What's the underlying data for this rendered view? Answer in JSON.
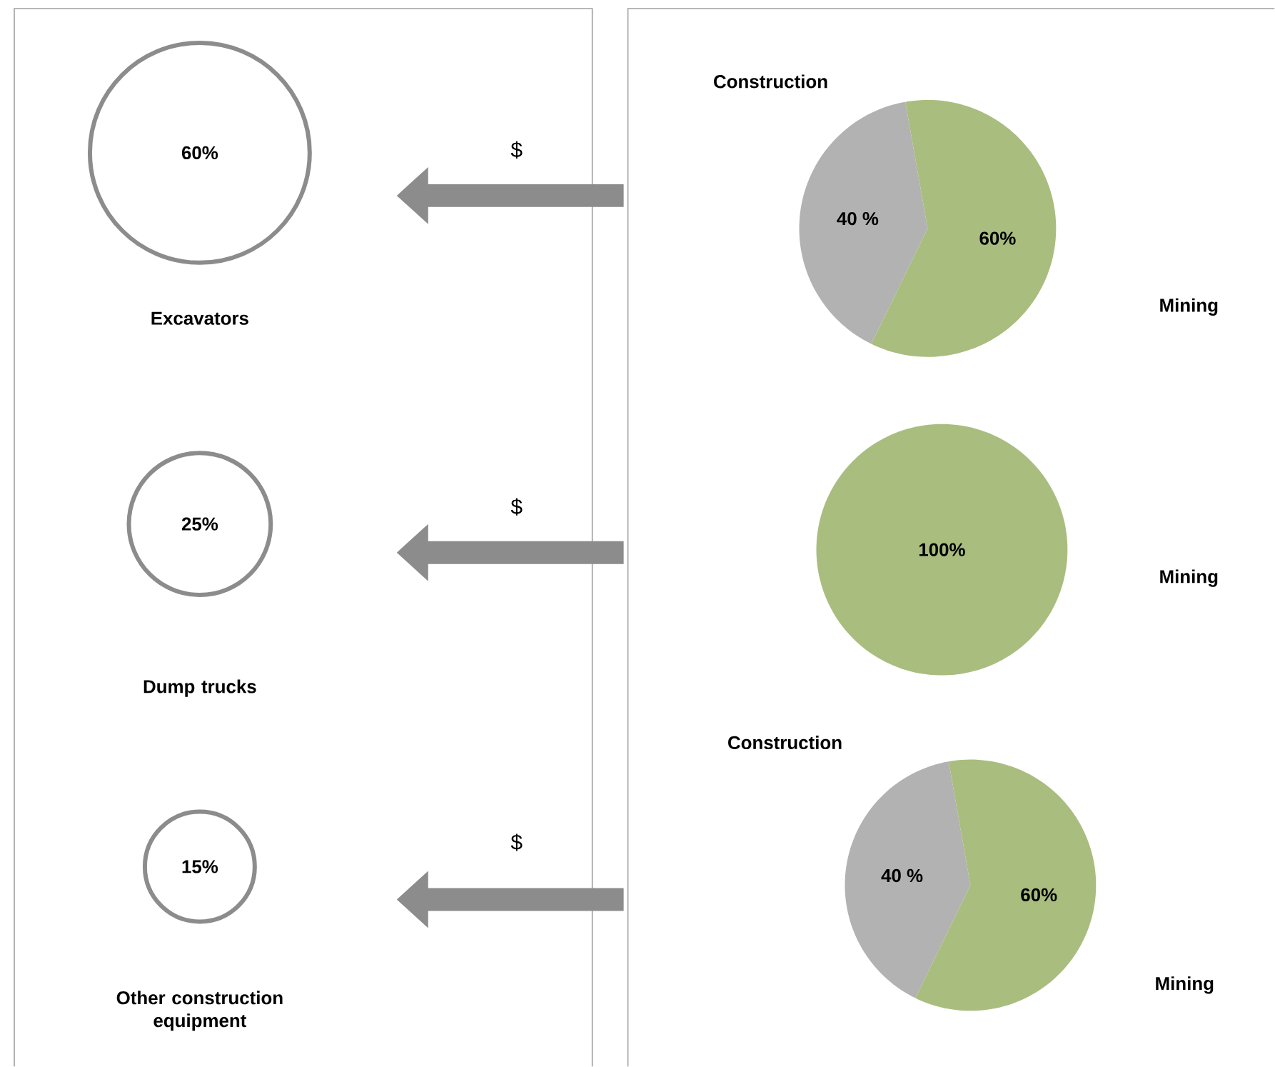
{
  "chart_data": [
    {
      "type": "other",
      "categories": [
        "Excavators",
        "Dump trucks",
        "Other construction equipment"
      ],
      "values": [
        60,
        25,
        15
      ],
      "value_labels": [
        "60%",
        "25%",
        "15%"
      ],
      "color": "#8c8c8c"
    },
    {
      "type": "pie",
      "categories": [
        "Construction",
        "Mining"
      ],
      "values": [
        40,
        60
      ],
      "value_labels": [
        "40 %",
        "60%"
      ],
      "colors": [
        "#b2b2b2",
        "#a9bd7f"
      ],
      "annotations": [
        "$"
      ]
    },
    {
      "type": "pie",
      "categories": [
        "Mining"
      ],
      "values": [
        100
      ],
      "value_labels": [
        "100%"
      ],
      "colors": [
        "#a9bd7f"
      ],
      "annotations": [
        "$"
      ]
    },
    {
      "type": "pie",
      "categories": [
        "Construction",
        "Mining"
      ],
      "values": [
        40,
        60
      ],
      "value_labels": [
        "40 %",
        "60%"
      ],
      "colors": [
        "#b2b2b2",
        "#a9bd7f"
      ],
      "annotations": [
        "$"
      ]
    }
  ]
}
